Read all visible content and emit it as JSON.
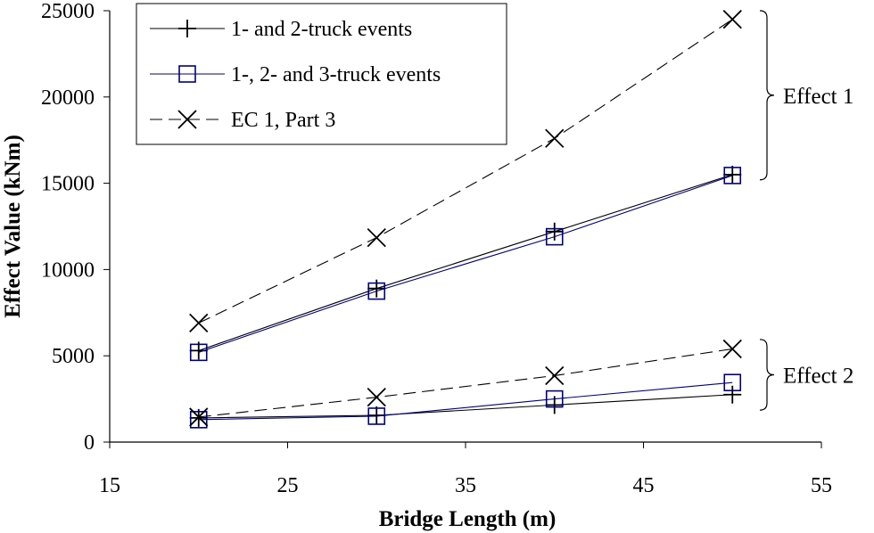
{
  "chart_data": {
    "type": "line",
    "xlabel": "Bridge Length (m)",
    "ylabel": "Effect Value (kNm)",
    "xlim": [
      15,
      55
    ],
    "ylim": [
      0,
      25000
    ],
    "x_ticks": [
      "15",
      "25",
      "35",
      "45",
      "55"
    ],
    "y_ticks": [
      "0",
      "5000",
      "10000",
      "15000",
      "20000",
      "25000"
    ],
    "grid": false,
    "legend_position": "top-left",
    "x": [
      20,
      30,
      40,
      50
    ],
    "series": [
      {
        "name": "1- and 2-truck events",
        "marker": "plus",
        "color": "#000000",
        "dashed": false,
        "groups": {
          "effect1": [
            5300,
            8900,
            12200,
            15500
          ],
          "effect2": [
            1400,
            1550,
            2150,
            2750
          ]
        }
      },
      {
        "name": "1-, 2- and 3-truck events",
        "marker": "square",
        "color": "#000080",
        "dashed": false,
        "groups": {
          "effect1": [
            5200,
            8750,
            11900,
            15450
          ],
          "effect2": [
            1300,
            1500,
            2500,
            3450
          ]
        }
      },
      {
        "name": "EC 1, Part 3",
        "marker": "cross",
        "color": "#000000",
        "dashed": true,
        "groups": {
          "effect1": [
            6900,
            11850,
            17600,
            24500
          ],
          "effect2": [
            1450,
            2600,
            3850,
            5400
          ]
        }
      }
    ],
    "annotations": [
      {
        "text": "Effect 1",
        "group": "effect1",
        "range": [
          15200,
          25000
        ]
      },
      {
        "text": "Effect 2",
        "group": "effect2",
        "range": [
          1850,
          5950
        ]
      }
    ]
  }
}
